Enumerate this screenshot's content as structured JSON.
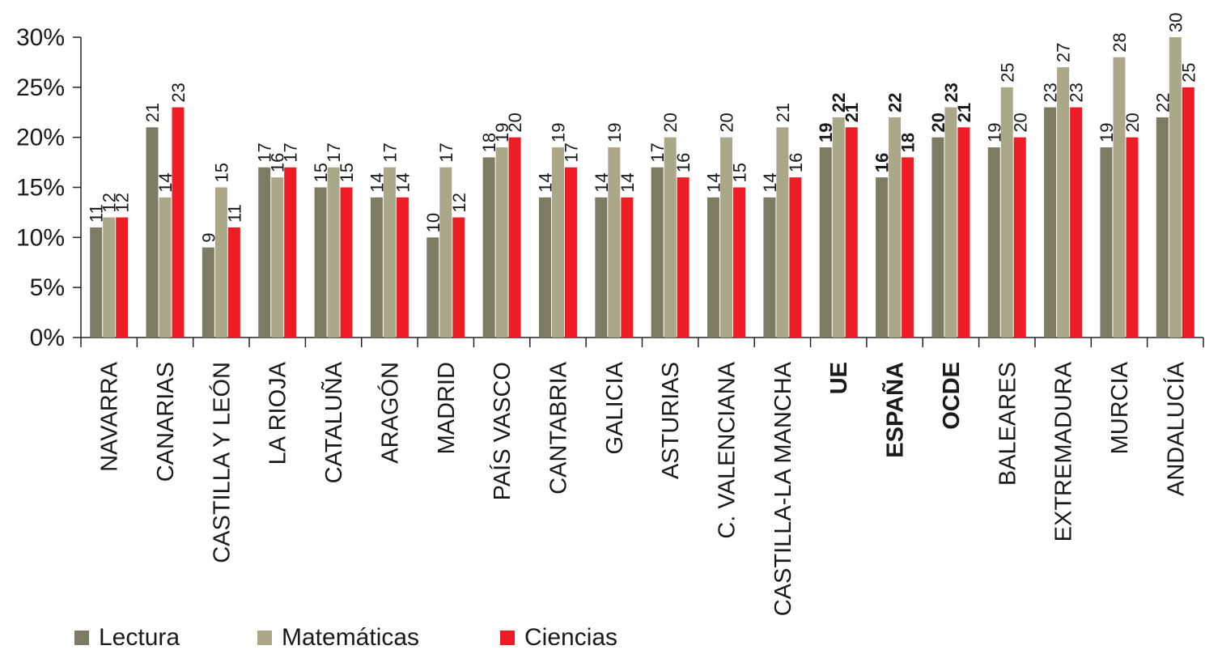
{
  "chart_data": {
    "type": "bar",
    "yticks": [
      "0%",
      "5%",
      "10%",
      "15%",
      "20%",
      "25%",
      "30%"
    ],
    "ylim": [
      0,
      30
    ],
    "grid": false,
    "legend_position": "bottom-left",
    "categories": [
      "NAVARRA",
      "CANARIAS",
      "CASTILLA Y LEÓN",
      "LA RIOJA",
      "CATALUÑA",
      "ARAGÓN",
      "MADRID",
      "PAÍS VASCO",
      "CANTABRIA",
      "GALICIA",
      "ASTURIAS",
      "C. VALENCIANA",
      "CASTILLA-LA MANCHA",
      "UE",
      "ESPAÑA",
      "OCDE",
      "BALEARES",
      "EXTREMADURA",
      "MURCIA",
      "ANDALUCÍA"
    ],
    "bold_categories": [
      "UE",
      "ESPAÑA",
      "OCDE"
    ],
    "series": [
      {
        "name": "Lectura",
        "color": "#7d7b63",
        "values": [
          11,
          21,
          9,
          17,
          15,
          14,
          10,
          18,
          14,
          14,
          17,
          14,
          14,
          19,
          16,
          20,
          19,
          23,
          19,
          22
        ]
      },
      {
        "name": "Matemáticas",
        "color": "#aba88a",
        "values": [
          12,
          14,
          15,
          16,
          17,
          17,
          17,
          19,
          19,
          19,
          20,
          20,
          21,
          22,
          22,
          23,
          25,
          27,
          28,
          30
        ]
      },
      {
        "name": "Ciencias",
        "color": "#ee1c25",
        "values": [
          12,
          23,
          11,
          17,
          15,
          14,
          12,
          20,
          17,
          14,
          16,
          15,
          16,
          21,
          18,
          21,
          20,
          23,
          20,
          25
        ]
      }
    ]
  }
}
